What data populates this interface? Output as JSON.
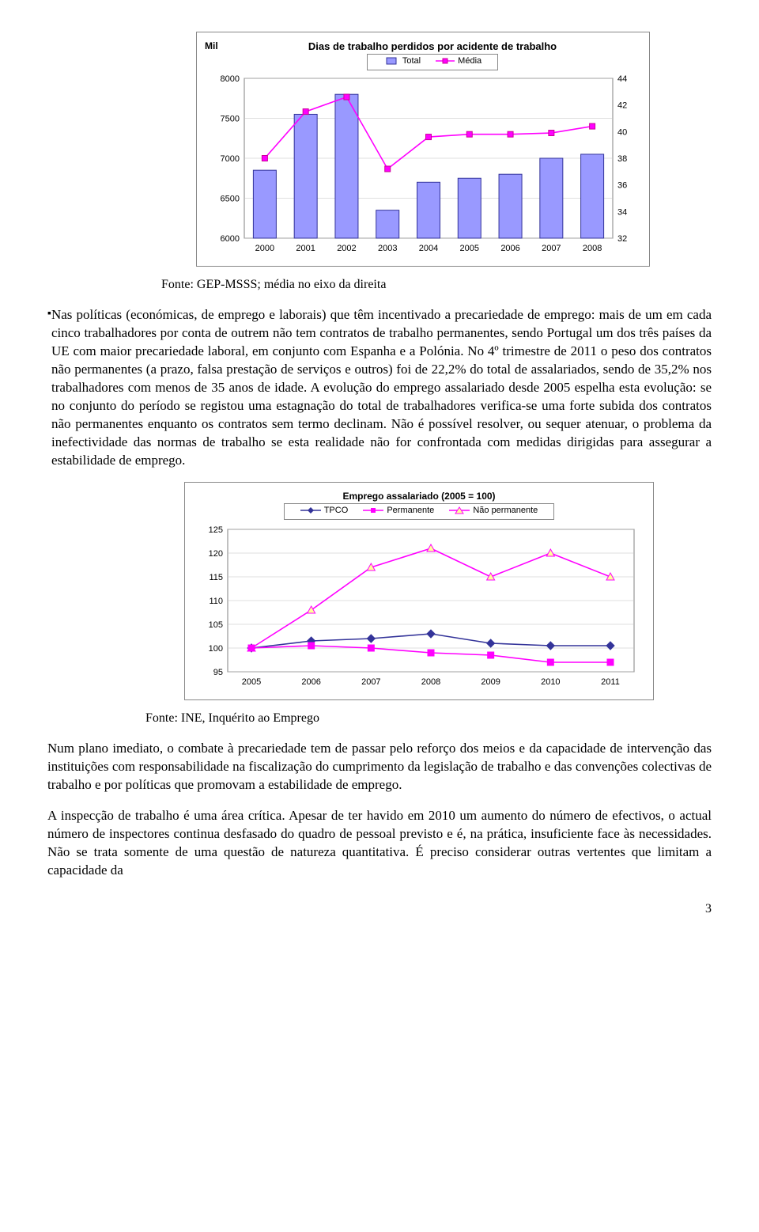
{
  "chart1": {
    "type": "bar+line",
    "y_label": "Mil",
    "title": "Dias de trabalho perdidos por acidente de trabalho",
    "legend": {
      "series_a": "Total",
      "series_b": "Média"
    },
    "colors": {
      "bar_fill": "#9999ff",
      "bar_stroke": "#333399",
      "line_stroke": "#ff00ff",
      "marker_fill": "#ff00ff",
      "marker_stroke": "#cc0099",
      "plot_bg": "#ffffff",
      "grid": "#c0c0c0",
      "border": "#808080",
      "text": "#000000"
    },
    "left_axis": {
      "min": 6000,
      "max": 8000,
      "step": 500
    },
    "right_axis": {
      "min": 32,
      "max": 44,
      "step": 2
    },
    "categories": [
      "2000",
      "2001",
      "2002",
      "2003",
      "2004",
      "2005",
      "2006",
      "2007",
      "2008"
    ],
    "bars": [
      6850,
      7550,
      7800,
      6350,
      6700,
      6750,
      6800,
      7000,
      7050
    ],
    "line": [
      38.0,
      41.5,
      42.6,
      37.2,
      39.6,
      39.8,
      39.8,
      39.9,
      40.4
    ],
    "bar_width_ratio": 0.56,
    "font": {
      "title_pt": 13,
      "axis_pt": 11
    }
  },
  "caption1": "Fonte: GEP-MSSS; média no eixo da direita",
  "para1": "Nas políticas (económicas, de emprego e laborais) que têm incentivado a precariedade de emprego: mais de um em cada cinco trabalhadores por conta de outrem não tem contratos de trabalho permanentes, sendo Portugal um dos três países da UE com maior precariedade laboral, em conjunto com Espanha e a Polónia. No 4º trimestre de 2011 o peso dos contratos não permanentes (a prazo, falsa prestação de serviços e outros) foi de 22,2% do total de assalariados, sendo de 35,2% nos trabalhadores com menos de 35 anos de idade. A evolução do emprego assalariado desde 2005 espelha esta evolução: se no conjunto do período se registou uma estagnação do total de trabalhadores verifica-se uma forte subida dos contratos não permanentes enquanto os contratos sem termo declinam. Não é possível resolver, ou sequer atenuar, o problema da inefectividade das normas de trabalho se esta realidade não for confrontada com medidas dirigidas para assegurar a estabilidade de emprego.",
  "chart2": {
    "type": "line",
    "title": "Emprego assalariado (2005 = 100)",
    "legend": {
      "s1": "TPCO",
      "s2": "Permanente",
      "s3": "Não permanente"
    },
    "colors": {
      "s1_stroke": "#333399",
      "s1_fill": "#333399",
      "s2_stroke": "#ff00ff",
      "s2_fill": "#ff00ff",
      "s3_stroke": "#ff00ff",
      "s3_fill": "#ffff99",
      "plot_bg": "#ffffff",
      "grid": "#c0c0c0",
      "border": "#808080",
      "text": "#000000"
    },
    "markers": {
      "s1": "diamond",
      "s2": "square",
      "s3": "triangle"
    },
    "y_axis": {
      "min": 95,
      "max": 125,
      "step": 5
    },
    "categories": [
      "2005",
      "2006",
      "2007",
      "2008",
      "2009",
      "2010",
      "2011"
    ],
    "s1": [
      100,
      101.5,
      102.0,
      103.0,
      101.0,
      100.5,
      100.5
    ],
    "s2": [
      100,
      100.5,
      100.0,
      99.0,
      98.5,
      97.0,
      97.0
    ],
    "s3": [
      100,
      108.0,
      117.0,
      121.0,
      115.0,
      120.0,
      115.0
    ],
    "font": {
      "title_pt": 12,
      "axis_pt": 11
    }
  },
  "caption2": "Fonte: INE, Inquérito ao Emprego",
  "para2": "Num plano imediato, o combate à precariedade tem de passar pelo reforço dos meios e da capacidade de intervenção das instituições com responsabilidade na fiscalização do cumprimento da legislação de trabalho e das convenções colectivas de trabalho e por políticas que promovam a estabilidade de emprego.",
  "para3": "A inspecção de trabalho é uma área crítica. Apesar de ter havido em 2010 um aumento do número de efectivos, o actual número de inspectores continua desfasado do quadro de pessoal previsto e é, na prática, insuficiente face às necessidades. Não se trata somente de uma questão de natureza quantitativa. É preciso considerar outras vertentes que limitam a capacidade da",
  "page_number": "3"
}
